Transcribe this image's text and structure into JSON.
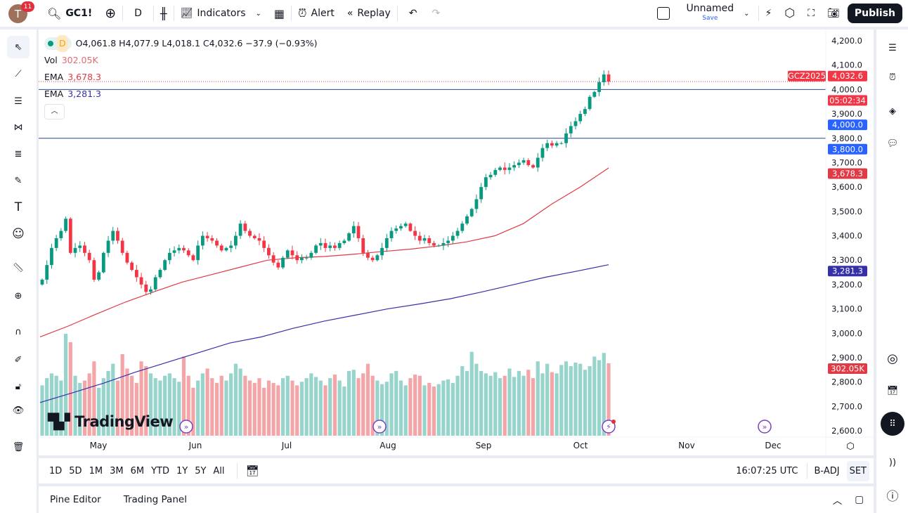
{
  "topbar": {
    "avatar_letter": "T",
    "notifications": "11",
    "symbol": "GC1!",
    "interval": "D",
    "indicators": "Indicators",
    "alert": "Alert",
    "replay": "Replay",
    "layout_name": "Unnamed",
    "save": "Save",
    "publish": "Publish"
  },
  "legend": {
    "interval": "D",
    "ohlc": "O4,061.8 H4,077.9 L4,018.1 C4,032.6 −37.9 (−0.93%)",
    "vol_label": "Vol",
    "vol_value": "302.05K",
    "ema1_label": "EMA",
    "ema1_value": "3,678.3",
    "ema2_label": "EMA",
    "ema2_value": "3,281.3"
  },
  "watermark": "TradingView",
  "price_scale": {
    "ticks": [
      "4,200.0",
      "4,100.0",
      "4,000.0",
      "3,900.0",
      "3,800.0",
      "3,700.0",
      "3,600.0",
      "3,500.0",
      "3,400.0",
      "3,300.0",
      "3,200.0",
      "3,100.0",
      "3,000.0",
      "2,900.0",
      "2,800.0",
      "2,700.0",
      "2,600.0"
    ],
    "labels": {
      "symbol": "GCZ2025",
      "last": "4,032.6",
      "countdown": "05:02:34",
      "line1": "4,000.0",
      "line2": "3,800.0",
      "ema1": "3,678.3",
      "ema2": "3,281.3",
      "vol": "302.05K"
    }
  },
  "time_axis": [
    "May",
    "Jun",
    "Jul",
    "Aug",
    "Sep",
    "Oct",
    "Nov",
    "Dec"
  ],
  "colors": {
    "up": "#089981",
    "down": "#f23645",
    "vol_up": "#97d4cc",
    "vol_down": "#f4a5a8",
    "ema1": "#e03a45",
    "ema2": "#3530a8",
    "hline": "#2a4a8a",
    "label_blue": "#2962ff"
  },
  "chart_data": {
    "type": "candlestick",
    "price_range": [
      2600,
      4200
    ],
    "closes": [
      3220,
      3280,
      3350,
      3390,
      3420,
      3470,
      3330,
      3350,
      3360,
      3330,
      3300,
      3220,
      3250,
      3330,
      3380,
      3420,
      3380,
      3330,
      3290,
      3260,
      3230,
      3200,
      3170,
      3180,
      3230,
      3260,
      3300,
      3330,
      3340,
      3350,
      3340,
      3320,
      3300,
      3360,
      3400,
      3390,
      3380,
      3360,
      3340,
      3350,
      3360,
      3400,
      3450,
      3420,
      3400,
      3390,
      3380,
      3350,
      3320,
      3290,
      3270,
      3310,
      3340,
      3320,
      3300,
      3310,
      3310,
      3330,
      3360,
      3370,
      3350,
      3360,
      3350,
      3370,
      3380,
      3410,
      3440,
      3390,
      3330,
      3310,
      3300,
      3320,
      3350,
      3390,
      3420,
      3430,
      3440,
      3450,
      3420,
      3400,
      3380,
      3390,
      3370,
      3360,
      3360,
      3370,
      3380,
      3400,
      3420,
      3450,
      3480,
      3510,
      3550,
      3600,
      3640,
      3650,
      3670,
      3680,
      3670,
      3680,
      3690,
      3700,
      3710,
      3690,
      3680,
      3720,
      3760,
      3780,
      3770,
      3780,
      3780,
      3820,
      3850,
      3870,
      3900,
      3920,
      3970,
      3990,
      4030,
      4061.8,
      4032.6
    ],
    "volumes_k": [
      210,
      240,
      260,
      250,
      230,
      425,
      390,
      250,
      220,
      230,
      260,
      310,
      200,
      240,
      270,
      300,
      230,
      340,
      280,
      250,
      220,
      310,
      290,
      260,
      240,
      230,
      250,
      260,
      240,
      225,
      330,
      250,
      200,
      230,
      260,
      280,
      240,
      220,
      250,
      230,
      260,
      300,
      280,
      250,
      230,
      220,
      240,
      200,
      230,
      220,
      210,
      240,
      250,
      230,
      210,
      225,
      240,
      260,
      245,
      230,
      210,
      240,
      255,
      230,
      205,
      270,
      275,
      240,
      260,
      300,
      250,
      230,
      215,
      225,
      260,
      270,
      230,
      210,
      240,
      255,
      250,
      210,
      220,
      205,
      215,
      230,
      235,
      220,
      250,
      290,
      270,
      350,
      300,
      270,
      260,
      250,
      265,
      240,
      250,
      280,
      245,
      270,
      250,
      275,
      240,
      310,
      260,
      300,
      265,
      260,
      295,
      310,
      290,
      305,
      300,
      275,
      290,
      330,
      315,
      345,
      302.05
    ],
    "ema_fast": [
      2985,
      3030,
      3080,
      3128,
      3170,
      3210,
      3240,
      3270,
      3300,
      3310,
      3315,
      3324,
      3335,
      3345,
      3358,
      3375,
      3400,
      3450,
      3530,
      3600,
      3678.3
    ],
    "ema_slow": [
      2716,
      2755,
      2795,
      2840,
      2880,
      2920,
      2960,
      2985,
      3020,
      3050,
      3075,
      3100,
      3120,
      3142,
      3170,
      3200,
      3230,
      3255,
      3281.3
    ],
    "horizontal_lines": [
      4000,
      3800
    ],
    "last_price": 4032.6
  },
  "range_buttons": [
    "1D",
    "5D",
    "1M",
    "3M",
    "6M",
    "YTD",
    "1Y",
    "5Y",
    "All"
  ],
  "status": {
    "time": "16:07:25 UTC",
    "badj": "B-ADJ",
    "set": "SET"
  },
  "bottom_panel": {
    "pine": "Pine Editor",
    "trading": "Trading Panel"
  }
}
